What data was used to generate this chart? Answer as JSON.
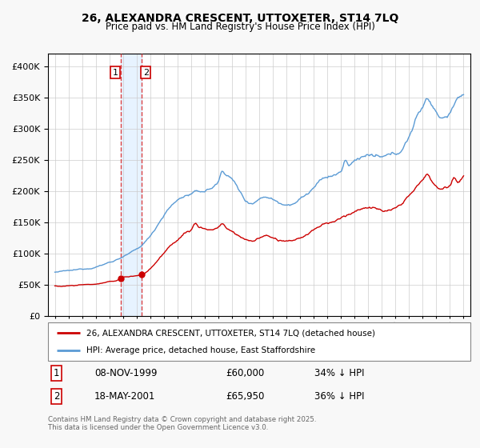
{
  "title1": "26, ALEXANDRA CRESCENT, UTTOXETER, ST14 7LQ",
  "title2": "Price paid vs. HM Land Registry's House Price Index (HPI)",
  "legend1": "26, ALEXANDRA CRESCENT, UTTOXETER, ST14 7LQ (detached house)",
  "legend2": "HPI: Average price, detached house, East Staffordshire",
  "transaction1_date": "08-NOV-1999",
  "transaction1_price": 60000,
  "transaction1_hpi": "34% ↓ HPI",
  "transaction2_date": "18-MAY-2001",
  "transaction2_price": 65950,
  "transaction2_hpi": "36% ↓ HPI",
  "footnote": "Contains HM Land Registry data © Crown copyright and database right 2025.\nThis data is licensed under the Open Government Licence v3.0.",
  "hpi_color": "#5b9bd5",
  "price_color": "#cc0000",
  "marker_color": "#cc0000",
  "vline_color": "#dd4444",
  "shade_color": "#ddeeff",
  "ylim": [
    0,
    420000
  ],
  "yticks": [
    0,
    50000,
    100000,
    150000,
    200000,
    250000,
    300000,
    350000,
    400000
  ],
  "background": "#f8f8f8",
  "sale1_x": 1999.833,
  "sale2_x": 2001.375,
  "sale1_y": 60000,
  "sale2_y": 65950,
  "xmin": 1994.5,
  "xmax": 2025.5
}
